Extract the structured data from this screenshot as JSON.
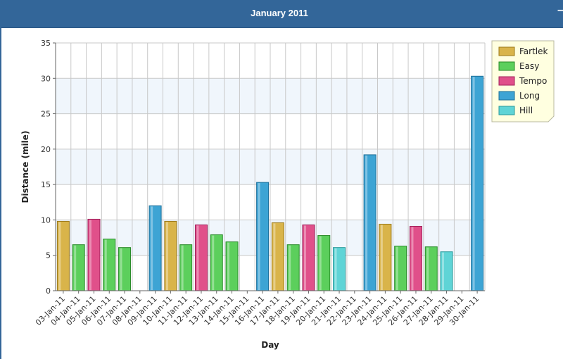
{
  "window": {
    "title": "January 2011",
    "minimize_label": "–"
  },
  "colors": {
    "titlebar": "#336699",
    "legend_bg": "#ffffe0",
    "grid": "#c8c8c8",
    "band": "#f0f6fc"
  },
  "legend_items": [
    {
      "name": "Fartlek",
      "color": "#d9b44a",
      "stroke": "#9c7a1a"
    },
    {
      "name": "Easy",
      "color": "#5ccf5c",
      "stroke": "#2a8a2a"
    },
    {
      "name": "Tempo",
      "color": "#e0508a",
      "stroke": "#a0205a"
    },
    {
      "name": "Long",
      "color": "#3da4d4",
      "stroke": "#1d6f99"
    },
    {
      "name": "Hill",
      "color": "#5fd4d6",
      "stroke": "#2a9a9c"
    }
  ],
  "chart_data": {
    "type": "bar",
    "xlabel": "Day",
    "ylabel": "Distance (mile)",
    "ylim": [
      0,
      35
    ],
    "yticks": [
      0,
      5,
      10,
      15,
      20,
      25,
      30,
      35
    ],
    "grid": true,
    "legend_position": "top-right",
    "categories": [
      "03-Jan-11",
      "04-Jan-11",
      "05-Jan-11",
      "06-Jan-11",
      "07-Jan-11",
      "08-Jan-11",
      "09-Jan-11",
      "10-Jan-11",
      "11-Jan-11",
      "12-Jan-11",
      "13-Jan-11",
      "14-Jan-11",
      "15-Jan-11",
      "16-Jan-11",
      "17-Jan-11",
      "18-Jan-11",
      "19-Jan-11",
      "20-Jan-11",
      "21-Jan-11",
      "22-Jan-11",
      "23-Jan-11",
      "24-Jan-11",
      "25-Jan-11",
      "26-Jan-11",
      "27-Jan-11",
      "28-Jan-11",
      "29-Jan-11",
      "30-Jan-11"
    ],
    "series": [
      {
        "name": "Fartlek",
        "values": [
          9.8,
          null,
          null,
          null,
          null,
          null,
          null,
          9.8,
          null,
          null,
          null,
          null,
          null,
          null,
          9.6,
          null,
          null,
          null,
          null,
          null,
          null,
          9.4,
          null,
          null,
          null,
          null,
          null,
          null
        ]
      },
      {
        "name": "Easy",
        "values": [
          null,
          6.5,
          null,
          7.3,
          6.1,
          null,
          null,
          null,
          6.5,
          null,
          7.9,
          6.9,
          null,
          null,
          null,
          6.5,
          null,
          7.8,
          null,
          null,
          null,
          null,
          6.3,
          null,
          6.2,
          null,
          null,
          null
        ]
      },
      {
        "name": "Tempo",
        "values": [
          null,
          null,
          10.1,
          null,
          null,
          null,
          null,
          null,
          null,
          9.3,
          null,
          null,
          null,
          null,
          null,
          null,
          9.3,
          null,
          null,
          null,
          null,
          null,
          null,
          9.1,
          null,
          null,
          null,
          null
        ]
      },
      {
        "name": "Long",
        "values": [
          null,
          null,
          null,
          null,
          null,
          null,
          12.0,
          null,
          null,
          null,
          null,
          null,
          null,
          15.3,
          null,
          null,
          null,
          null,
          null,
          null,
          19.2,
          null,
          null,
          null,
          null,
          null,
          null,
          30.3
        ]
      },
      {
        "name": "Hill",
        "values": [
          null,
          null,
          null,
          null,
          null,
          null,
          null,
          null,
          null,
          null,
          null,
          null,
          null,
          null,
          null,
          null,
          null,
          null,
          6.1,
          null,
          null,
          null,
          null,
          null,
          null,
          5.5,
          null,
          null
        ]
      }
    ]
  }
}
